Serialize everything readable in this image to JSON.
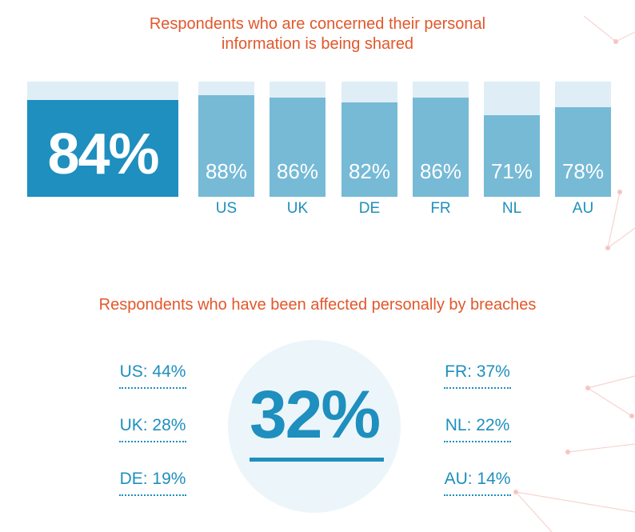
{
  "chart_data": [
    {
      "type": "bar",
      "title": "Respondents who are concerned their personal information is being shared",
      "title_lines": [
        "Respondents who are concerned their personal",
        "information is being shared"
      ],
      "overall": {
        "value": 84,
        "label": "84%"
      },
      "categories": [
        "US",
        "UK",
        "DE",
        "FR",
        "NL",
        "AU"
      ],
      "values": [
        88,
        86,
        82,
        86,
        71,
        78
      ],
      "value_labels": [
        "88%",
        "86%",
        "82%",
        "86%",
        "71%",
        "78%"
      ],
      "ylim": [
        0,
        100
      ],
      "grid": false,
      "legend": "none"
    },
    {
      "type": "table",
      "title": "Respondents who have been affected personally by breaches",
      "overall": {
        "value": 32,
        "label": "32%"
      },
      "categories": [
        "US",
        "UK",
        "DE",
        "FR",
        "NL",
        "AU"
      ],
      "values": [
        44,
        28,
        19,
        37,
        22,
        14
      ],
      "labels": [
        "US: 44%",
        "UK: 28%",
        "DE: 19%",
        "FR: 37%",
        "NL: 22%",
        "AU: 14%"
      ]
    }
  ],
  "colors": {
    "title": "#e2572a",
    "dark_blue": "#1e8fbe",
    "light_blue": "#76bad6",
    "bar_background": "#dfeef6",
    "circle": "#ecf6fa",
    "decor_lines": "#f3c6c2"
  }
}
